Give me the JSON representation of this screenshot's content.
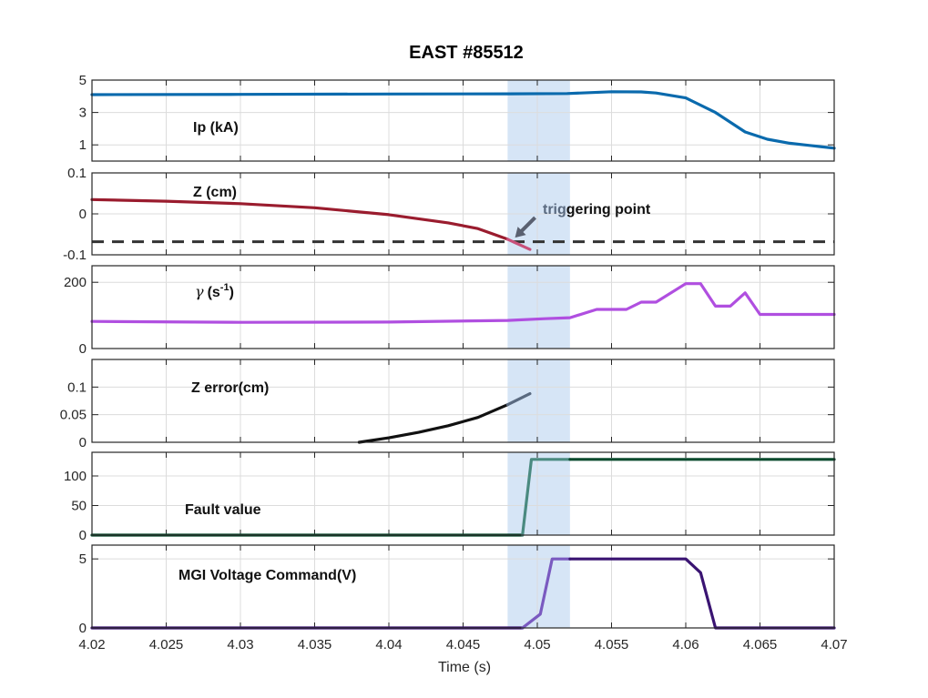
{
  "chart_data": {
    "type": "line",
    "title": "EAST #85512",
    "xlabel": "Time (s)",
    "xlim": [
      4.02,
      4.07
    ],
    "x_ticks": [
      "4.02",
      "4.025",
      "4.03",
      "4.035",
      "4.04",
      "4.045",
      "4.05",
      "4.055",
      "4.06",
      "4.065",
      "4.07"
    ],
    "highlight_band": {
      "x": [
        4.048,
        4.0522
      ],
      "color": "#cfe0f5"
    },
    "grid": true,
    "panels": [
      {
        "label": "Ip (kA)",
        "ylim": [
          0,
          5
        ],
        "y_ticks": [
          "5",
          "3",
          "1"
        ],
        "series": [
          {
            "color": "#0a6aad",
            "points": [
              [
                4.02,
                4.1
              ],
              [
                4.03,
                4.12
              ],
              [
                4.04,
                4.14
              ],
              [
                4.048,
                4.15
              ],
              [
                4.052,
                4.17
              ],
              [
                4.055,
                4.28
              ],
              [
                4.057,
                4.27
              ],
              [
                4.058,
                4.2
              ],
              [
                4.06,
                3.9
              ],
              [
                4.062,
                3.0
              ],
              [
                4.064,
                1.8
              ],
              [
                4.0655,
                1.35
              ],
              [
                4.067,
                1.1
              ],
              [
                4.069,
                0.9
              ],
              [
                4.07,
                0.8
              ]
            ]
          }
        ]
      },
      {
        "label": "Z (cm)",
        "ylim": [
          -0.1,
          0.1
        ],
        "y_ticks": [
          "0.1",
          "0",
          "-0.1"
        ],
        "reference_line": {
          "y": -0.068,
          "style": "dashed",
          "color": "#333333"
        },
        "series": [
          {
            "color": "#9a1c2e",
            "points": [
              [
                4.02,
                0.035
              ],
              [
                4.025,
                0.031
              ],
              [
                4.03,
                0.025
              ],
              [
                4.035,
                0.015
              ],
              [
                4.04,
                -0.002
              ],
              [
                4.044,
                -0.022
              ],
              [
                4.046,
                -0.036
              ],
              [
                4.048,
                -0.062
              ]
            ]
          },
          {
            "color": "#c8507a",
            "points": [
              [
                4.048,
                -0.062
              ],
              [
                4.0495,
                -0.087
              ]
            ]
          }
        ],
        "annotation": {
          "text_a": "trig",
          "text_b": "gering point",
          "x": 4.0485,
          "y": -0.058
        }
      },
      {
        "label_main": "γ",
        "label_unit": "(s",
        "label_exp": "-1",
        "label_close": ")",
        "ylim": [
          0,
          250
        ],
        "y_ticks": [
          "200",
          "0"
        ],
        "series": [
          {
            "color": "#b04fe0",
            "points": [
              [
                4.02,
                82
              ],
              [
                4.03,
                79
              ],
              [
                4.04,
                80
              ],
              [
                4.048,
                85
              ],
              [
                4.0505,
                90
              ],
              [
                4.0522,
                93
              ],
              [
                4.054,
                118
              ],
              [
                4.056,
                118
              ],
              [
                4.057,
                140
              ],
              [
                4.058,
                140
              ],
              [
                4.06,
                196
              ],
              [
                4.061,
                196
              ],
              [
                4.062,
                128
              ],
              [
                4.063,
                128
              ],
              [
                4.064,
                168
              ],
              [
                4.065,
                103
              ],
              [
                4.07,
                103
              ]
            ]
          }
        ]
      },
      {
        "label": "Z error(cm)",
        "ylim": [
          0,
          0.15
        ],
        "y_ticks": [
          "0.1",
          "0.05",
          "0"
        ],
        "series": [
          {
            "color": "#111111",
            "points": [
              [
                4.038,
                0.0
              ],
              [
                4.04,
                0.008
              ],
              [
                4.042,
                0.018
              ],
              [
                4.044,
                0.03
              ],
              [
                4.046,
                0.045
              ],
              [
                4.048,
                0.068
              ]
            ]
          },
          {
            "color": "#5a6a80",
            "points": [
              [
                4.048,
                0.068
              ],
              [
                4.0495,
                0.088
              ]
            ]
          }
        ]
      },
      {
        "label": "Fault value",
        "ylim": [
          0,
          140
        ],
        "y_ticks": [
          "100",
          "50",
          "0"
        ],
        "series": [
          {
            "color": "#0a4a2e",
            "points": [
              [
                4.02,
                0
              ],
              [
                4.048,
                0
              ],
              [
                4.049,
                0
              ]
            ]
          },
          {
            "color": "#4a8a80",
            "points": [
              [
                4.049,
                0
              ],
              [
                4.0496,
                128
              ],
              [
                4.0522,
                128
              ]
            ]
          },
          {
            "color": "#0a4a2e",
            "points": [
              [
                4.0522,
                128
              ],
              [
                4.07,
                128
              ]
            ]
          }
        ]
      },
      {
        "label": "MGI Voltage Command(V)",
        "ylim": [
          0,
          6
        ],
        "y_ticks": [
          "5",
          "0"
        ],
        "series": [
          {
            "color": "#3a1472",
            "points": [
              [
                4.02,
                0
              ],
              [
                4.048,
                0
              ],
              [
                4.049,
                0
              ]
            ]
          },
          {
            "color": "#7a5ac0",
            "points": [
              [
                4.049,
                0
              ],
              [
                4.0502,
                1.0
              ],
              [
                4.051,
                5.0
              ],
              [
                4.0522,
                5.0
              ]
            ]
          },
          {
            "color": "#3a1472",
            "points": [
              [
                4.0522,
                5.0
              ],
              [
                4.06,
                5.0
              ],
              [
                4.061,
                4.0
              ],
              [
                4.062,
                0
              ],
              [
                4.07,
                0
              ]
            ]
          }
        ]
      }
    ]
  }
}
